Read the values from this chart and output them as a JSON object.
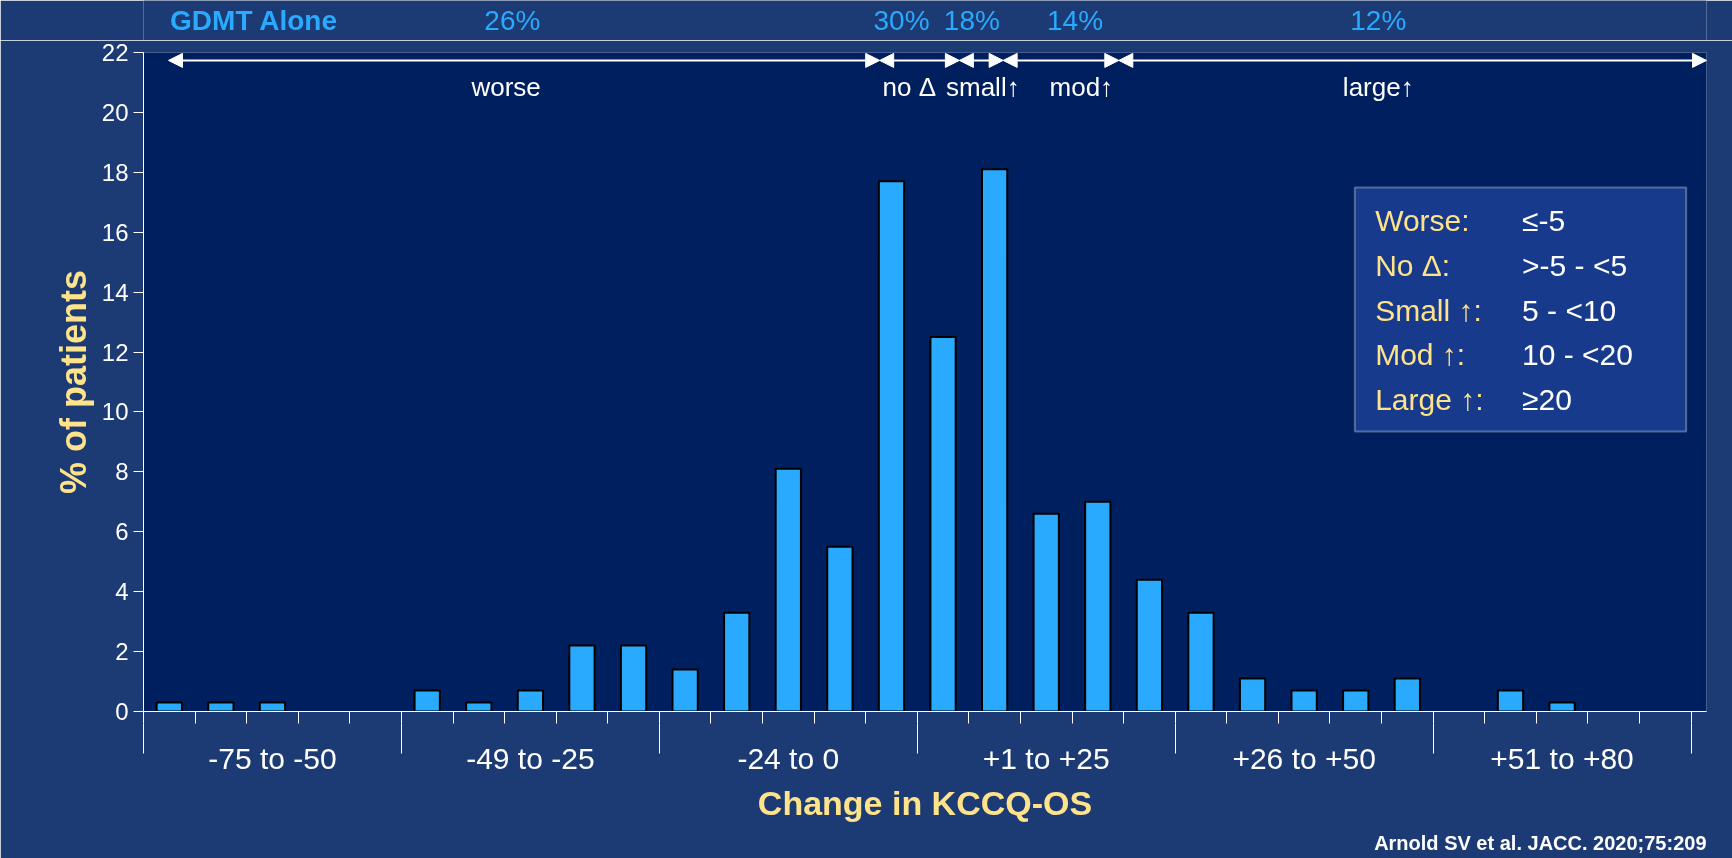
{
  "chart_data": {
    "type": "bar",
    "title": "GDMT Alone",
    "xlabel": "Change in KCCQ-OS",
    "ylabel": "% of patients",
    "categories": [
      null,
      null,
      "-75 to -50",
      null,
      null,
      null,
      null,
      "-49 to -25",
      null,
      null,
      null,
      null,
      "-24 to 0",
      null,
      null,
      null,
      null,
      "+1 to +25",
      null,
      null,
      null,
      null,
      "+26 to +50",
      null,
      null,
      null,
      null,
      "+51 to +80",
      null,
      null
    ],
    "values": [
      0.3,
      0.3,
      0.3,
      0,
      0,
      0.7,
      0.3,
      0.7,
      2.2,
      2.2,
      1.4,
      3.3,
      8.1,
      5.5,
      17.7,
      12.5,
      18.1,
      6.6,
      7.0,
      4.4,
      3.3,
      1.1,
      0.7,
      0.7,
      1.1,
      0,
      0.7,
      0.3,
      0,
      0
    ],
    "color": "#29aaff",
    "ylim": [
      0,
      22
    ],
    "yticks": [
      0,
      2,
      4,
      6,
      8,
      10,
      12,
      14,
      16,
      18,
      20,
      22
    ],
    "grid": false,
    "annotations": [
      "26%",
      "30%",
      "18%",
      "14%",
      "12%",
      "worse",
      "no Δ",
      "small↑",
      "mod↑",
      "large↑",
      "Worse:",
      "≤-5",
      "No Δ:",
      ">-5 - <5",
      "Small ↑:",
      "5 - <10",
      "Mod ↑:",
      "10 - <20",
      "Large ↑:",
      "≥20",
      "Arnold SV et al. JACC. 2020;75:209"
    ]
  }
}
